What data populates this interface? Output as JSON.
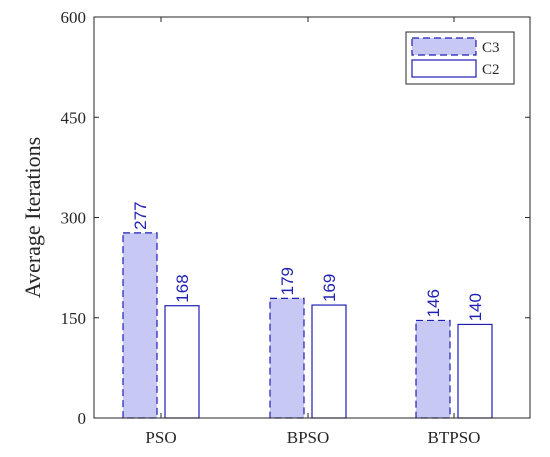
{
  "chart_data": {
    "type": "bar",
    "title": "",
    "xlabel": "",
    "ylabel": "Average Iterations",
    "categories": [
      "PSO",
      "BPSO",
      "BTPSO"
    ],
    "series": [
      {
        "name": "C3",
        "values": [
          277,
          179,
          146
        ],
        "fill": "#c8c8f5",
        "stroke": "#1f1fb4",
        "dashed": true
      },
      {
        "name": "C2",
        "values": [
          168,
          169,
          140
        ],
        "fill": "#ffffff",
        "stroke": "#1f1fb4",
        "dashed": false
      }
    ],
    "ylim": [
      0,
      600
    ],
    "yticks": [
      0,
      150,
      300,
      450,
      600
    ],
    "ytick_labels": [
      "0",
      "150",
      "300",
      "450",
      "600"
    ],
    "data_labels": [
      [
        "277",
        "179",
        "146"
      ],
      [
        "168",
        "169",
        "140"
      ]
    ],
    "legend_position": "top-right",
    "grid": false
  }
}
